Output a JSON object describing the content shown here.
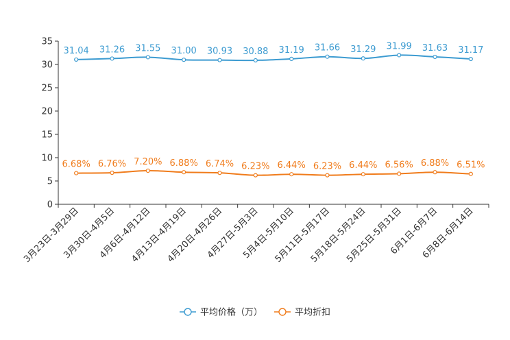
{
  "chart_data": {
    "type": "line",
    "title": "",
    "xlabel": "",
    "ylabel": "",
    "ylim": [
      0,
      35
    ],
    "yticks": [
      0,
      5,
      10,
      15,
      20,
      25,
      30,
      35
    ],
    "categories": [
      "3月23日-3月29日",
      "3月30日-4月5日",
      "4月6日-4月12日",
      "4月13日-4月19日",
      "4月20日-4月26日",
      "4月27日-5月3日",
      "5月4日-5月10日",
      "5月11日-5月17日",
      "5月18日-5月24日",
      "5月25日-5月31日",
      "6月1日-6月7日",
      "6月8日-6月14日"
    ],
    "series": [
      {
        "name": "平均价格（万）",
        "color": "#3c9bd1",
        "values": [
          31.04,
          31.26,
          31.55,
          31.0,
          30.93,
          30.88,
          31.19,
          31.66,
          31.29,
          31.99,
          31.63,
          31.17
        ],
        "labels": [
          "31.04",
          "31.26",
          "31.55",
          "31.00",
          "30.93",
          "30.88",
          "31.19",
          "31.66",
          "31.29",
          "31.99",
          "31.63",
          "31.17"
        ]
      },
      {
        "name": "平均折扣",
        "color": "#f07c1c",
        "values": [
          6.68,
          6.76,
          7.2,
          6.88,
          6.74,
          6.23,
          6.44,
          6.23,
          6.44,
          6.56,
          6.88,
          6.51
        ],
        "labels": [
          "6.68%",
          "6.76%",
          "7.20%",
          "6.88%",
          "6.74%",
          "6.23%",
          "6.44%",
          "6.23%",
          "6.44%",
          "6.56%",
          "6.88%",
          "6.51%"
        ]
      }
    ],
    "legend_position": "bottom-center",
    "grid": false
  }
}
